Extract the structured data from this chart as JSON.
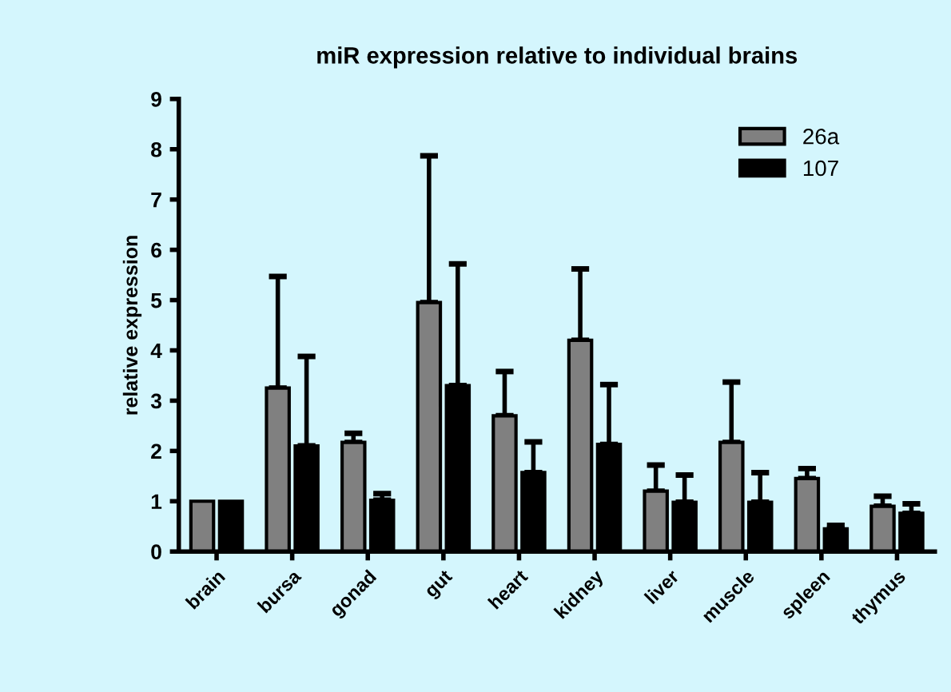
{
  "chart_data": {
    "type": "bar",
    "title": "miR expression relative to individual brains",
    "ylabel": "relative expression",
    "categories": [
      "brain",
      "bursa",
      "gonad",
      "gut",
      "heart",
      "kidney",
      "liver",
      "muscle",
      "spleen",
      "thymus"
    ],
    "series": [
      {
        "name": "26a",
        "color": "#808080",
        "values": [
          1,
          3.25,
          2.17,
          4.95,
          2.7,
          4.2,
          1.2,
          2.17,
          1.45,
          0.9
        ],
        "errors": [
          null,
          [
            3.25,
            5.47
          ],
          [
            2.17,
            2.35
          ],
          [
            4.95,
            7.87
          ],
          [
            2.7,
            3.58
          ],
          [
            4.2,
            5.62
          ],
          [
            1.2,
            1.72
          ],
          [
            2.17,
            3.37
          ],
          [
            1.45,
            1.65
          ],
          [
            0.9,
            1.1
          ]
        ]
      },
      {
        "name": "107",
        "color": "#000000",
        "values": [
          1,
          2.1,
          1.02,
          3.3,
          1.57,
          2.13,
          0.98,
          0.98,
          0.45,
          0.76
        ],
        "errors": [
          null,
          [
            2.1,
            3.88
          ],
          [
            1.02,
            1.15
          ],
          [
            3.3,
            5.72
          ],
          [
            1.57,
            2.18
          ],
          [
            2.13,
            3.32
          ],
          [
            0.98,
            1.52
          ],
          [
            0.98,
            1.57
          ],
          [
            0.45,
            0.52
          ],
          [
            0.76,
            0.95
          ]
        ]
      }
    ],
    "ylim": [
      0,
      9
    ],
    "yticks": [
      0,
      1,
      2,
      3,
      4,
      5,
      6,
      7,
      8,
      9
    ],
    "grid": false,
    "legend": "top right"
  }
}
